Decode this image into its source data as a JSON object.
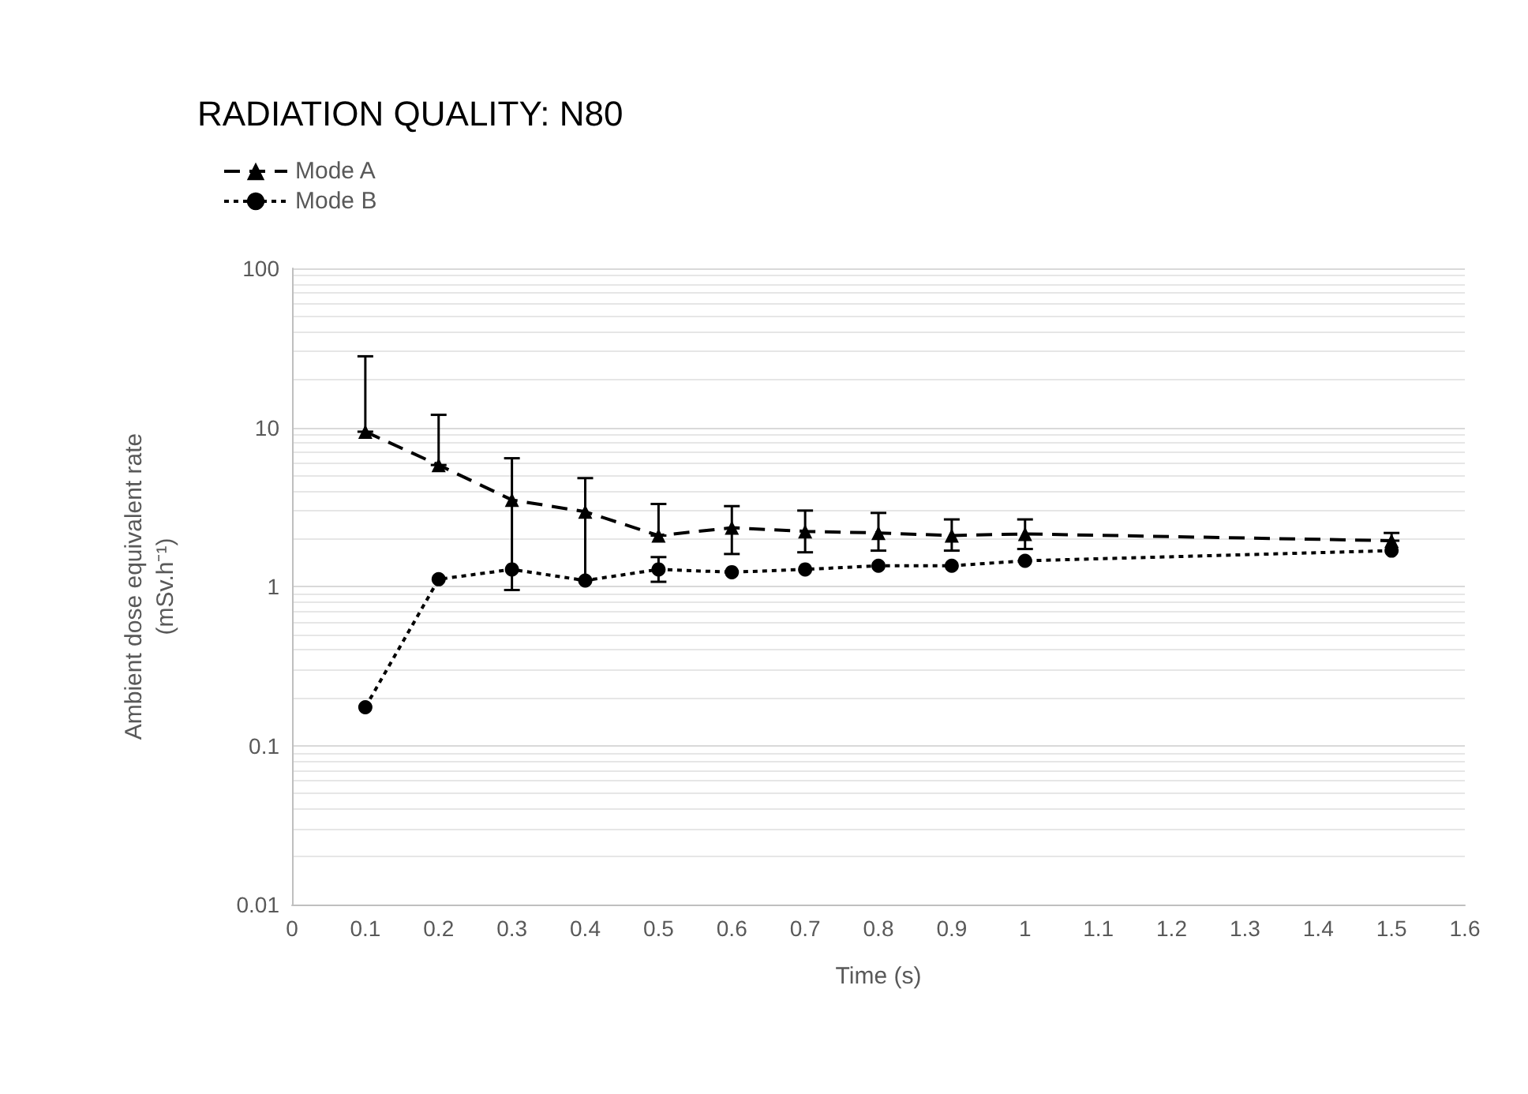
{
  "chart_data": {
    "type": "line",
    "title": "RADIATION QUALITY: N80",
    "xlabel": "Time (s)",
    "ylabel": "Ambient dose equivalent rate\n(mSv.h⁻¹)",
    "x": [
      0.1,
      0.2,
      0.3,
      0.4,
      0.5,
      0.6,
      0.7,
      0.8,
      0.9,
      1,
      1.5
    ],
    "series": [
      {
        "name": "Mode A",
        "color": "#000000",
        "marker": "triangle",
        "line_style": "dashed",
        "values": [
          9.4,
          5.8,
          3.5,
          2.95,
          2.09,
          2.34,
          2.22,
          2.17,
          2.09,
          2.14,
          1.94
        ],
        "errors": [
          [
            9.4,
            28
          ],
          [
            5.8,
            12
          ],
          [
            0.95,
            6.4
          ],
          [
            1.1,
            4.8
          ],
          [
            2.09,
            3.3
          ],
          [
            1.6,
            3.2
          ],
          [
            1.64,
            3
          ],
          [
            1.68,
            2.9
          ],
          [
            1.68,
            2.64
          ],
          [
            1.72,
            2.64
          ],
          [
            1.94,
            2.17
          ]
        ]
      },
      {
        "name": "Mode B",
        "color": "#000000",
        "marker": "circle",
        "line_style": "dotted",
        "values": [
          0.174,
          1.11,
          1.28,
          1.09,
          1.28,
          1.23,
          1.28,
          1.35,
          1.35,
          1.45,
          1.68
        ],
        "errors": [
          null,
          null,
          null,
          null,
          [
            1.07,
            1.53
          ],
          null,
          null,
          null,
          null,
          null,
          null
        ]
      }
    ],
    "log": true,
    "xlim": [
      0,
      1.6
    ],
    "xticks": [
      0,
      0.1,
      0.2,
      0.3,
      0.4,
      0.5,
      0.6,
      0.7,
      0.8,
      0.9,
      1,
      1.1,
      1.2,
      1.3,
      1.4,
      1.5,
      1.6
    ],
    "ylim": [
      0.01,
      100
    ],
    "yticks": [
      0.01,
      0.1,
      1,
      10,
      100
    ],
    "grid": "y",
    "legend": "top left"
  }
}
